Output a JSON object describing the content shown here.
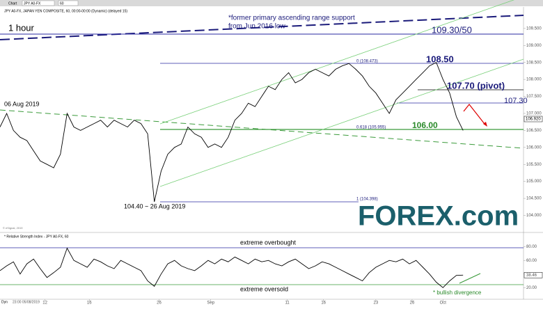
{
  "toolbar": {
    "tab": "Chart",
    "symbol": "JPY A0-FX",
    "interval": "60"
  },
  "footer": {
    "mode": "Dyn",
    "date": "23:00 05/08/2019"
  },
  "logo": {
    "text": "FOREX.com"
  },
  "chart_data": [
    {
      "type": "line",
      "title": "JPY A0-FX, JAPAN YEN COMPOSITE, 60, 00:00-00:00 (Dynamic) (delayed 15)",
      "subtitle": "1 hour",
      "series": [
        {
          "name": "JPY A0-FX",
          "color": "#000000",
          "values": [
            106.6,
            107.0,
            106.5,
            106.3,
            106.2,
            105.9,
            105.6,
            105.5,
            105.4,
            105.8,
            107.0,
            106.6,
            106.5,
            106.6,
            106.7,
            106.8,
            106.6,
            106.8,
            106.7,
            106.6,
            106.8,
            106.7,
            106.4,
            104.4,
            105.3,
            105.8,
            106.0,
            106.1,
            106.6,
            106.4,
            106.3,
            106.0,
            106.1,
            106.0,
            106.3,
            106.8,
            107.0,
            107.3,
            107.2,
            107.5,
            107.8,
            107.7,
            108.0,
            108.2,
            107.9,
            108.0,
            108.2,
            108.3,
            108.2,
            108.1,
            108.3,
            108.4,
            108.47,
            108.3,
            108.1,
            107.8,
            107.6,
            107.3,
            107.0,
            107.4,
            107.6,
            107.8,
            108.0,
            108.2,
            108.4,
            108.5,
            108.0,
            107.6,
            106.9,
            106.5
          ]
        }
      ],
      "xlim": [
        0,
        78
      ],
      "xticks": [
        {
          "value": 6.7,
          "label": "12"
        },
        {
          "value": 13.3,
          "label": "16"
        },
        {
          "value": 23.7,
          "label": "26"
        },
        {
          "value": 31.4,
          "label": "Sep"
        },
        {
          "value": 42.8,
          "label": "11"
        },
        {
          "value": 48.2,
          "label": "16"
        },
        {
          "value": 56,
          "label": "23"
        },
        {
          "value": 61.4,
          "label": "26"
        },
        {
          "value": 66,
          "label": "Oct"
        }
      ],
      "ylim": [
        103.58,
        110.05
      ],
      "yticks": [
        {
          "value": 104,
          "label": "104.000"
        },
        {
          "value": 104.5,
          "label": "104.500"
        },
        {
          "value": 105,
          "label": "105.000"
        },
        {
          "value": 105.5,
          "label": "105.500"
        },
        {
          "value": 106,
          "label": "106.000"
        },
        {
          "value": 106.5,
          "label": "106.500"
        },
        {
          "value": 107,
          "label": "107.000"
        },
        {
          "value": 107.5,
          "label": "107.500"
        },
        {
          "value": 108,
          "label": "108.000"
        },
        {
          "value": 108.5,
          "label": "108.500"
        },
        {
          "value": 109,
          "label": "109.000"
        },
        {
          "value": 109.5,
          "label": "109.500"
        }
      ],
      "annotations": [
        "*former primary ascending range support",
        "from Jun 2016 low",
        "109.30/50",
        "108.50",
        "107.70 (pivot)",
        "107.30",
        "106.00",
        "06 Aug 2019",
        "104.40 ~ 26 Aug 2019",
        "0 (108.473)",
        "0.618 (105.955)",
        "1 (104.398)",
        "106.920",
        "© eSignal, 2019"
      ]
    },
    {
      "type": "line",
      "title": "* Relative Strength Index - JPY A0-FX, 60",
      "series": [
        {
          "name": "RSI",
          "color": "#000000",
          "values": [
            45,
            52,
            58,
            40,
            55,
            62,
            48,
            35,
            42,
            50,
            78,
            60,
            55,
            50,
            62,
            58,
            52,
            48,
            60,
            55,
            50,
            45,
            30,
            22,
            40,
            55,
            60,
            52,
            48,
            45,
            52,
            60,
            55,
            62,
            58,
            65,
            60,
            55,
            62,
            58,
            60,
            55,
            52,
            58,
            62,
            55,
            48,
            52,
            58,
            55,
            50,
            45,
            40,
            35,
            30,
            42,
            50,
            55,
            60,
            58,
            62,
            55,
            60,
            50,
            40,
            28,
            20,
            30,
            38,
            38.46
          ]
        }
      ],
      "xlim": [
        0,
        78
      ],
      "ylim": [
        5,
        95
      ],
      "yticks": [
        {
          "value": 20,
          "label": "20.00"
        },
        {
          "value": 40,
          "label": "40.00"
        },
        {
          "value": 60,
          "label": "60.00"
        },
        {
          "value": 80,
          "label": "80.00"
        }
      ],
      "annotations": [
        "extreme overbought",
        "extreme oversold",
        "* bullish divergence"
      ]
    }
  ]
}
